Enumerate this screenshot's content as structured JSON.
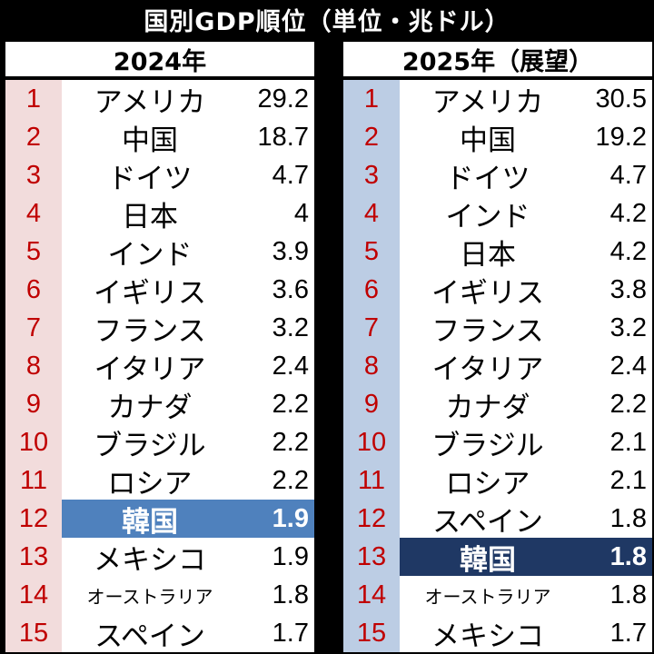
{
  "title": "国別GDP順位（単位・兆ドル）",
  "colors": {
    "rank_text": "#c00000",
    "left_rank_bg": "#f2dcdc",
    "right_rank_bg": "#bccde4",
    "korea_highlight_2024": "#4f81bd",
    "korea_highlight_2025": "#1f3864"
  },
  "chart_data": [
    {
      "type": "table",
      "title": "2024年",
      "columns": [
        "rank",
        "country",
        "value"
      ],
      "highlight": "韓国",
      "rows": [
        {
          "rank": "1",
          "country": "アメリカ",
          "value": "29.2"
        },
        {
          "rank": "2",
          "country": "中国",
          "value": "18.7"
        },
        {
          "rank": "3",
          "country": "ドイツ",
          "value": "4.7"
        },
        {
          "rank": "4",
          "country": "日本",
          "value": "4"
        },
        {
          "rank": "5",
          "country": "インド",
          "value": "3.9"
        },
        {
          "rank": "6",
          "country": "イギリス",
          "value": "3.6"
        },
        {
          "rank": "7",
          "country": "フランス",
          "value": "3.2"
        },
        {
          "rank": "8",
          "country": "イタリア",
          "value": "2.4"
        },
        {
          "rank": "9",
          "country": "カナダ",
          "value": "2.2"
        },
        {
          "rank": "10",
          "country": "ブラジル",
          "value": "2.2"
        },
        {
          "rank": "11",
          "country": "ロシア",
          "value": "2.2"
        },
        {
          "rank": "12",
          "country": "韓国",
          "value": "1.9"
        },
        {
          "rank": "13",
          "country": "メキシコ",
          "value": "1.9"
        },
        {
          "rank": "14",
          "country": "オーストラリア",
          "value": "1.8"
        },
        {
          "rank": "15",
          "country": "スペイン",
          "value": "1.7"
        }
      ]
    },
    {
      "type": "table",
      "title": "2025年（展望）",
      "columns": [
        "rank",
        "country",
        "value"
      ],
      "highlight": "韓国",
      "rows": [
        {
          "rank": "1",
          "country": "アメリカ",
          "value": "30.5"
        },
        {
          "rank": "2",
          "country": "中国",
          "value": "19.2"
        },
        {
          "rank": "3",
          "country": "ドイツ",
          "value": "4.7"
        },
        {
          "rank": "4",
          "country": "インド",
          "value": "4.2"
        },
        {
          "rank": "5",
          "country": "日本",
          "value": "4.2"
        },
        {
          "rank": "6",
          "country": "イギリス",
          "value": "3.8"
        },
        {
          "rank": "7",
          "country": "フランス",
          "value": "3.2"
        },
        {
          "rank": "8",
          "country": "イタリア",
          "value": "2.4"
        },
        {
          "rank": "9",
          "country": "カナダ",
          "value": "2.2"
        },
        {
          "rank": "10",
          "country": "ブラジル",
          "value": "2.1"
        },
        {
          "rank": "11",
          "country": "ロシア",
          "value": "2.1"
        },
        {
          "rank": "12",
          "country": "スペイン",
          "value": "1.8"
        },
        {
          "rank": "13",
          "country": "韓国",
          "value": "1.8"
        },
        {
          "rank": "14",
          "country": "オーストラリア",
          "value": "1.8"
        },
        {
          "rank": "15",
          "country": "メキシコ",
          "value": "1.7"
        }
      ]
    }
  ]
}
